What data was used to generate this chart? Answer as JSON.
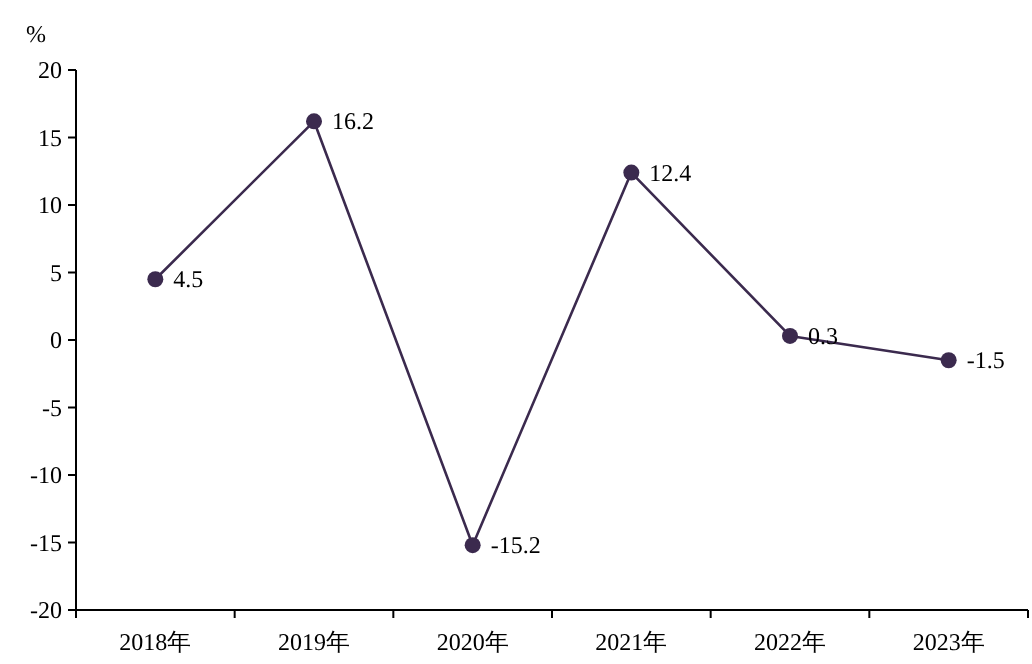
{
  "chart_data": {
    "type": "line",
    "ylabel": "%",
    "categories": [
      "2018年",
      "2019年",
      "2020年",
      "2021年",
      "2022年",
      "2023年"
    ],
    "values": [
      4.5,
      16.2,
      -15.2,
      12.4,
      0.3,
      -1.5
    ],
    "color": "#3b2a4e",
    "marker": "circle",
    "line_style": "solid",
    "data_labels": true,
    "ylim": [
      -20,
      20
    ],
    "yticks": [
      -20,
      -15,
      -10,
      -5,
      0,
      5,
      10,
      15,
      20
    ]
  }
}
